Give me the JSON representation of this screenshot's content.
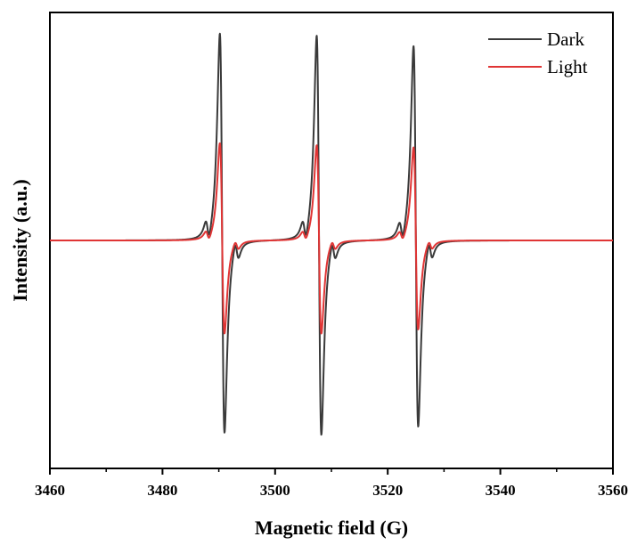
{
  "chart_data": {
    "type": "line",
    "title": "",
    "xlabel": "Magnetic field (G)",
    "ylabel": "Intensity (a.u.)",
    "xlim": [
      3460,
      3560
    ],
    "ylim": [
      -1.1,
      1.1
    ],
    "x_ticks": [
      3460,
      3480,
      3500,
      3520,
      3540,
      3560
    ],
    "x_tick_labels": [
      "3460",
      "3480",
      "3500",
      "3520",
      "3540",
      "3560"
    ],
    "y_ticks_shown": false,
    "grid": false,
    "legend": {
      "position": "top-right",
      "entries": [
        "Dark",
        "Light"
      ]
    },
    "lines": [
      {
        "center": 3490.6,
        "dark_peak": 1.0,
        "dark_trough": -0.93,
        "light_peak": 0.47,
        "light_trough": -0.45
      },
      {
        "center": 3507.8,
        "dark_peak": 0.99,
        "dark_trough": -0.94,
        "light_peak": 0.46,
        "light_trough": -0.45
      },
      {
        "center": 3525.0,
        "dark_peak": 0.94,
        "dark_trough": -0.9,
        "light_peak": 0.45,
        "light_trough": -0.43
      }
    ],
    "series": [
      {
        "name": "Dark",
        "color": "#3a3a3a",
        "amplitude": 1.0
      },
      {
        "name": "Light",
        "color": "#e03535",
        "amplitude": 0.47
      }
    ]
  }
}
